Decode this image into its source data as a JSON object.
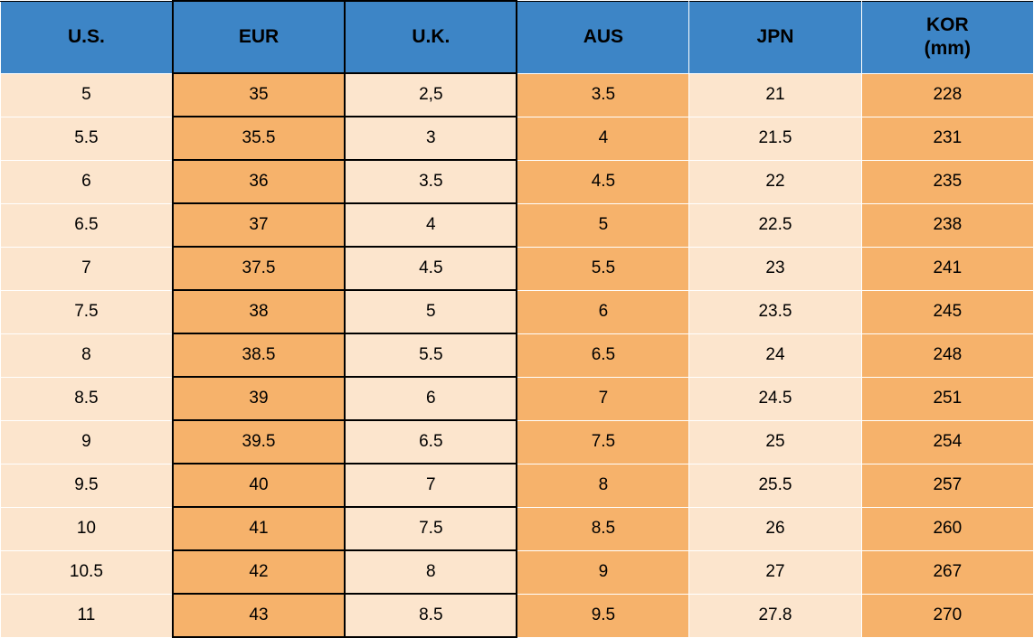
{
  "table": {
    "columns": [
      {
        "id": "us",
        "label": "U.S."
      },
      {
        "id": "eur",
        "label": "EUR"
      },
      {
        "id": "uk",
        "label": "U.K."
      },
      {
        "id": "aus",
        "label": "AUS"
      },
      {
        "id": "jpn",
        "label": "JPN"
      },
      {
        "id": "kor",
        "label": "KOR",
        "sublabel": "(mm)"
      }
    ],
    "rows": [
      [
        "5",
        "35",
        "2,5",
        "3.5",
        "21",
        "228"
      ],
      [
        "5.5",
        "35.5",
        "3",
        "4",
        "21.5",
        "231"
      ],
      [
        "6",
        "36",
        "3.5",
        "4.5",
        "22",
        "235"
      ],
      [
        "6.5",
        "37",
        "4",
        "5",
        "22.5",
        "238"
      ],
      [
        "7",
        "37.5",
        "4.5",
        "5.5",
        "23",
        "241"
      ],
      [
        "7.5",
        "38",
        "5",
        "6",
        "23.5",
        "245"
      ],
      [
        "8",
        "38.5",
        "5.5",
        "6.5",
        "24",
        "248"
      ],
      [
        "8.5",
        "39",
        "6",
        "7",
        "24.5",
        "251"
      ],
      [
        "9",
        "39.5",
        "6.5",
        "7.5",
        "25",
        "254"
      ],
      [
        "9.5",
        "40",
        "7",
        "8",
        "25.5",
        "257"
      ],
      [
        "10",
        "41",
        "7.5",
        "8.5",
        "26",
        "260"
      ],
      [
        "10.5",
        "42",
        "8",
        "9",
        "27",
        "267"
      ],
      [
        "11",
        "43",
        "8.5",
        "9.5",
        "27.8",
        "270"
      ]
    ]
  },
  "colors": {
    "header_bg": "#3d85c6",
    "cell_orange": "#f6b26b",
    "cell_cream": "#fce5cd",
    "highlight_border": "#000000",
    "row_divider": "#ffffff",
    "text": "#000000"
  },
  "chart_data": {
    "type": "table",
    "columns": [
      "U.S.",
      "EUR",
      "U.K.",
      "AUS",
      "JPN",
      "KOR (mm)"
    ],
    "rows": [
      [
        "5",
        "35",
        "2,5",
        "3.5",
        "21",
        "228"
      ],
      [
        "5.5",
        "35.5",
        "3",
        "4",
        "21.5",
        "231"
      ],
      [
        "6",
        "36",
        "3.5",
        "4.5",
        "22",
        "235"
      ],
      [
        "6.5",
        "37",
        "4",
        "5",
        "22.5",
        "238"
      ],
      [
        "7",
        "37.5",
        "4.5",
        "5.5",
        "23",
        "241"
      ],
      [
        "7.5",
        "38",
        "5",
        "6",
        "23.5",
        "245"
      ],
      [
        "8",
        "38.5",
        "5.5",
        "6.5",
        "24",
        "248"
      ],
      [
        "8.5",
        "39",
        "6",
        "7",
        "24.5",
        "251"
      ],
      [
        "9",
        "39.5",
        "6.5",
        "7.5",
        "25",
        "254"
      ],
      [
        "9.5",
        "40",
        "7",
        "8",
        "25.5",
        "257"
      ],
      [
        "10",
        "41",
        "7.5",
        "8.5",
        "26",
        "260"
      ],
      [
        "10.5",
        "42",
        "8",
        "9",
        "27",
        "267"
      ],
      [
        "11",
        "43",
        "8.5",
        "9.5",
        "27.8",
        "270"
      ]
    ],
    "layout_hints": {
      "highlighted_columns": [
        "EUR",
        "U.K."
      ],
      "column_fill_pattern": [
        "cream",
        "orange",
        "cream",
        "orange",
        "cream",
        "orange"
      ],
      "header_fill": "#3d85c6"
    }
  }
}
